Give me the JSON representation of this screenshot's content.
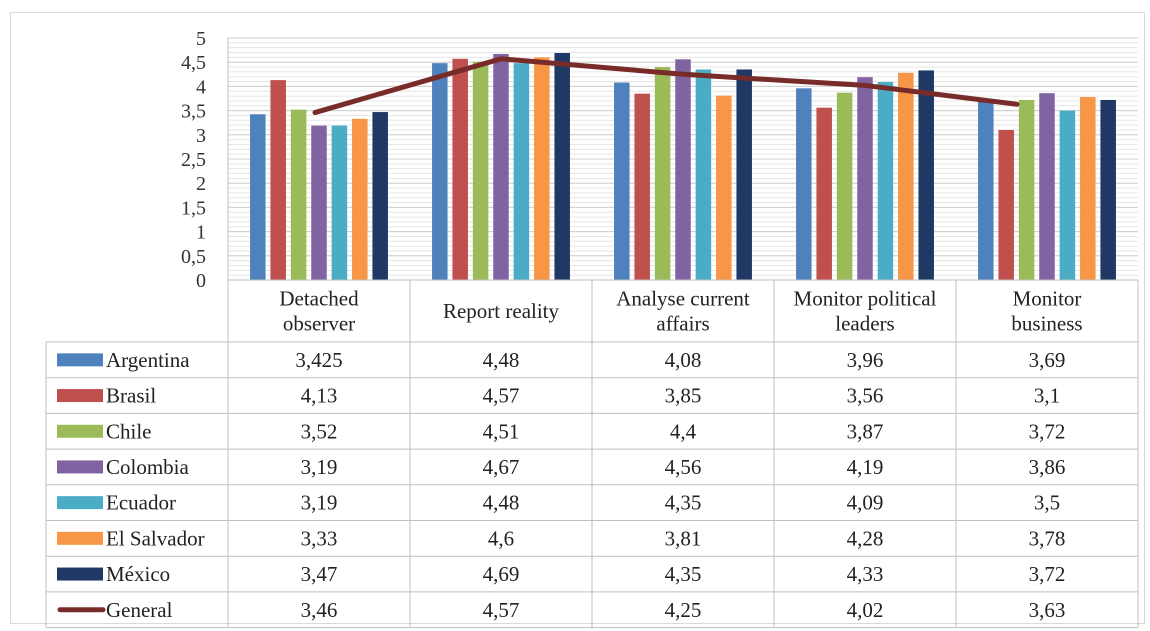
{
  "chart_data": {
    "type": "bar",
    "categories": [
      [
        "Detached",
        "observer"
      ],
      [
        "Report reality"
      ],
      [
        "Analyse current",
        "affairs"
      ],
      [
        "Monitor political",
        "leaders"
      ],
      [
        "Monitor",
        "business"
      ]
    ],
    "ylim": [
      0,
      5
    ],
    "yticks": [
      "0",
      "0,5",
      "1",
      "1,5",
      "2",
      "2,5",
      "3",
      "3,5",
      "4",
      "4,5",
      "5"
    ],
    "grid": true,
    "legend_placement": "data-table-left",
    "series": [
      {
        "name": "Argentina",
        "color": "#4F81BD",
        "values": [
          3.425,
          4.48,
          4.08,
          3.96,
          3.69
        ],
        "labels": [
          "3,425",
          "4,48",
          "4,08",
          "3,96",
          "3,69"
        ]
      },
      {
        "name": "Brasil",
        "color": "#C0504D",
        "values": [
          4.13,
          4.57,
          3.85,
          3.56,
          3.1
        ],
        "labels": [
          "4,13",
          "4,57",
          "3,85",
          "3,56",
          "3,1"
        ]
      },
      {
        "name": "Chile",
        "color": "#9BBB59",
        "values": [
          3.52,
          4.51,
          4.4,
          3.87,
          3.72
        ],
        "labels": [
          "3,52",
          "4,51",
          "4,4",
          "3,87",
          "3,72"
        ]
      },
      {
        "name": "Colombia",
        "color": "#8064A2",
        "values": [
          3.19,
          4.67,
          4.56,
          4.19,
          3.86
        ],
        "labels": [
          "3,19",
          "4,67",
          "4,56",
          "4,19",
          "3,86"
        ]
      },
      {
        "name": "Ecuador",
        "color": "#4BACC6",
        "values": [
          3.19,
          4.48,
          4.35,
          4.09,
          3.5
        ],
        "labels": [
          "3,19",
          "4,48",
          "4,35",
          "4,09",
          "3,5"
        ]
      },
      {
        "name": "El Salvador",
        "color": "#F79646",
        "values": [
          3.33,
          4.6,
          3.81,
          4.28,
          3.78
        ],
        "labels": [
          "3,33",
          "4,6",
          "3,81",
          "4,28",
          "3,78"
        ]
      },
      {
        "name": "México",
        "color": "#1F3864",
        "values": [
          3.47,
          4.69,
          4.35,
          4.33,
          3.72
        ],
        "labels": [
          "3,47",
          "4,69",
          "4,35",
          "4,33",
          "3,72"
        ]
      }
    ],
    "line_series": {
      "name": "General",
      "color": "#772C2A",
      "values": [
        3.46,
        4.57,
        4.25,
        4.02,
        3.63
      ],
      "labels": [
        "3,46",
        "4,57",
        "4,25",
        "4,02",
        "3,63"
      ]
    }
  }
}
